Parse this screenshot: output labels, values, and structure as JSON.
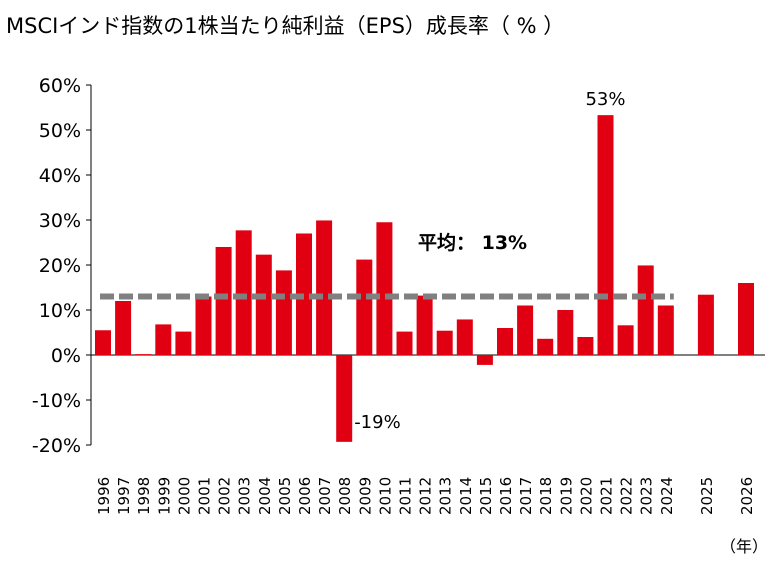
{
  "chart_data": {
    "type": "bar",
    "title": "MSCIインド指数の1株当たり純利益（EPS）成長率（ % ）",
    "xlabel": "",
    "ylabel": "",
    "x_unit": "（年）",
    "ylim": [
      -20,
      60
    ],
    "yticks": [
      "60%",
      "50%",
      "40%",
      "30%",
      "20%",
      "10%",
      "0%",
      "-10%",
      "-20%"
    ],
    "ytick_values": [
      60,
      50,
      40,
      30,
      20,
      10,
      0,
      -10,
      -20
    ],
    "categories": [
      "1996",
      "1997",
      "1998",
      "1999",
      "2000",
      "2001",
      "2002",
      "2003",
      "2004",
      "2005",
      "2006",
      "2007",
      "2008",
      "2009",
      "2010",
      "2011",
      "2012",
      "2013",
      "2014",
      "2015",
      "2016",
      "2017",
      "2018",
      "2019",
      "2020",
      "2021",
      "2022",
      "2023",
      "2024",
      "2025",
      "2026"
    ],
    "values": [
      5.5,
      12,
      0.2,
      6.8,
      5.2,
      13,
      24,
      27.7,
      22.3,
      18.8,
      27,
      29.9,
      -19.3,
      21.2,
      29.5,
      5.2,
      13.2,
      5.4,
      7.9,
      -2.2,
      6,
      11,
      3.6,
      10,
      4,
      53.3,
      6.6,
      19.9,
      11,
      13.4,
      16
    ],
    "bar_color": "#e00012",
    "average": {
      "value": 13,
      "label": "平均： 13%",
      "color": "#808080",
      "style": "dashed"
    },
    "annotations": [
      {
        "category": "2021",
        "text": "53%"
      },
      {
        "category": "2008",
        "text": "-19%"
      }
    ],
    "grid": false,
    "legend": "none"
  }
}
